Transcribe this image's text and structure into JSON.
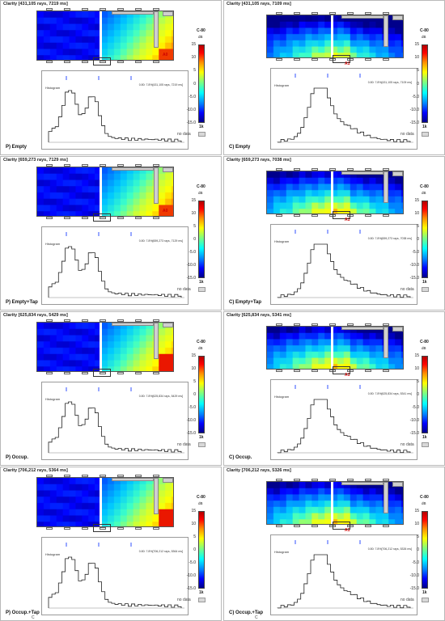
{
  "panels": [
    {
      "title": "Clarity [431,105 rays, 7219 ms]",
      "label": "P) Empty",
      "histogram_label": "Histogram",
      "info": "0.80: 7.8%[431,105 rays, 7219 ms]",
      "marker": "A0",
      "mode": "P"
    },
    {
      "title": "Clarity [431,105 rays, 7109 ms]",
      "label": "C) Empty",
      "histogram_label": "Histogram",
      "info": "0.80: 7.8%[431,105 rays, 7109 ms]",
      "marker": "A1",
      "mode": "C"
    },
    {
      "title": "Clarity [659,273 rays, 7129 ms]",
      "label": "P) Empty+Tap",
      "histogram_label": "Histogram",
      "info": "0.80: 7.8%[659,273 rays, 7129 ms]",
      "marker": "A0",
      "mode": "P"
    },
    {
      "title": "Clarity [659,273 rays, 7038 ms]",
      "label": "C) Empty+Tap",
      "histogram_label": "Histogram",
      "info": "0.80: 7.8%[659,273 rays, 7038 ms]",
      "marker": "A1",
      "mode": "C"
    },
    {
      "title": "Clarity [625,834 rays, 5429 ms]",
      "label": "P) Occup.",
      "histogram_label": "Histogram",
      "info": "0.80: 7.8%[625,834 rays, 5429 ms]",
      "marker": "",
      "mode": "P"
    },
    {
      "title": "Clarity [625,834 rays, 5341 ms]",
      "label": "C) Occup.",
      "histogram_label": "Histogram",
      "info": "0.80: 7.8%[625,834 rays, 5341 ms]",
      "marker": "A1",
      "mode": "C"
    },
    {
      "title": "Clarity [706,212 rays, 5364 ms]",
      "label": "P) Occup.+Tap",
      "histogram_label": "Histogram",
      "info": "0.80: 7.8%[706,212 rays, 5364 ms]",
      "marker": "",
      "mode": "P",
      "corner": "C"
    },
    {
      "title": "Clarity [706,212 rays, 5326 ms]",
      "label": "C) Occup.+Tap",
      "histogram_label": "Histogram",
      "info": "0.80: 7.8%[706,212 rays, 5326 ms]",
      "marker": "A1",
      "mode": "C",
      "corner": "C"
    }
  ],
  "colorbar": {
    "title": "C-80",
    "unit": "dB",
    "ticks": [
      "15",
      "10",
      "5",
      "0",
      "-5.0",
      "-10.0",
      "-15.0"
    ],
    "max_label": "1k",
    "nodata": "no data"
  }
}
